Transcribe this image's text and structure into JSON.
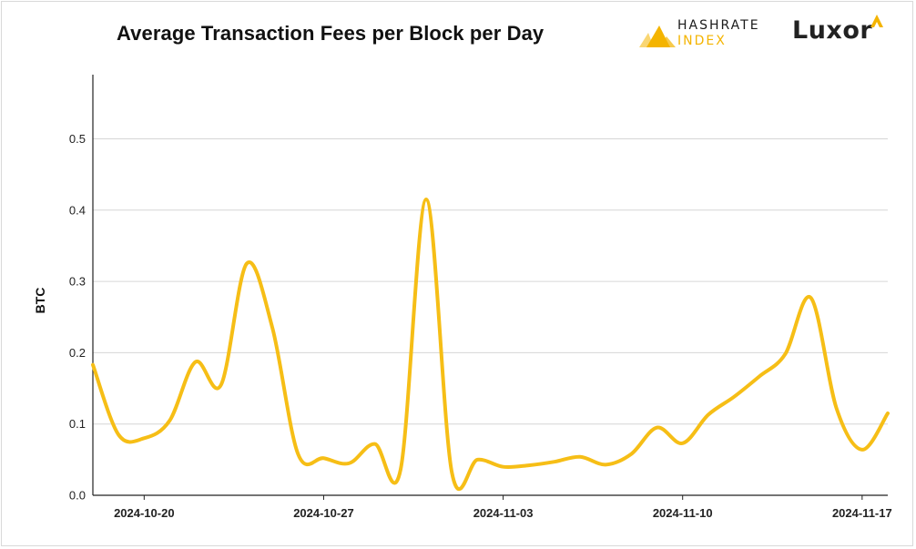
{
  "title": "Average Transaction Fees per Block per Day",
  "logos": {
    "hashrate_line1": "HASHRATE",
    "hashrate_line2": "INDEX",
    "luxor": "Luxor"
  },
  "colors": {
    "line": "#F6BE16",
    "grid": "#d6d6d6",
    "axis": "#222222",
    "brand_gold": "#F4B400"
  },
  "chart_data": {
    "type": "line",
    "title": "Average Transaction Fees per Block per Day",
    "xlabel": "",
    "ylabel": "BTC",
    "ylim": [
      0,
      0.59
    ],
    "yticks": [
      0.0,
      0.1,
      0.2,
      0.3,
      0.4,
      0.5
    ],
    "ytick_labels": [
      "0.0",
      "0.1",
      "0.2",
      "0.3",
      "0.4",
      "0.5"
    ],
    "xlim": [
      "2024-10-18",
      "2024-11-18"
    ],
    "xticks": [
      "2024-10-20",
      "2024-10-27",
      "2024-11-03",
      "2024-11-10",
      "2024-11-17"
    ],
    "grid": true,
    "series": [
      {
        "x": [
          "2024-10-18",
          "2024-10-19",
          "2024-10-20",
          "2024-10-21",
          "2024-10-22",
          "2024-10-23",
          "2024-10-24",
          "2024-10-25",
          "2024-10-26",
          "2024-10-27",
          "2024-10-28",
          "2024-10-29",
          "2024-10-30",
          "2024-10-31",
          "2024-11-01",
          "2024-11-02",
          "2024-11-03",
          "2024-11-04",
          "2024-11-05",
          "2024-11-06",
          "2024-11-07",
          "2024-11-08",
          "2024-11-09",
          "2024-11-10",
          "2024-11-11",
          "2024-11-12",
          "2024-11-13",
          "2024-11-14",
          "2024-11-15",
          "2024-11-16",
          "2024-11-17",
          "2024-11-18"
        ],
        "values": [
          0.183,
          0.085,
          0.08,
          0.105,
          0.187,
          0.155,
          0.325,
          0.235,
          0.058,
          0.052,
          0.045,
          0.072,
          0.036,
          0.415,
          0.032,
          0.05,
          0.04,
          0.042,
          0.047,
          0.054,
          0.043,
          0.058,
          0.095,
          0.073,
          0.113,
          0.138,
          0.167,
          0.198,
          0.277,
          0.122,
          0.064,
          0.115
        ]
      }
    ]
  }
}
